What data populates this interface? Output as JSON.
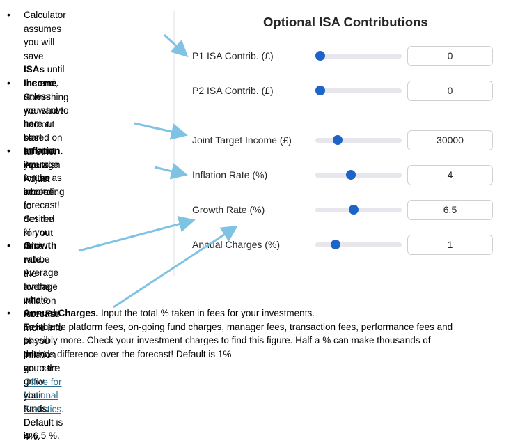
{
  "notes": [
    {
      "lines": [
        "Calculator assumes you will",
        "save ",
        "ISAs",
        " until the end, unless",
        "you show here a start amount",
        "you wish to use as income."
      ]
    },
    {
      "title": "Income.",
      "after_title": " Something we want to",
      "lines": [
        "find out based on all other",
        "inputs. Adjust according to",
        "desired run out date."
      ]
    },
    {
      "title": "Inflation.",
      "after_title": " Average for the whole",
      "lines": [
        "forecast! Set the % you think",
        "will be the average inflation",
        "rate. For more info on inflation",
        "go to the "
      ],
      "link1": "Office for National",
      "link2": "Statistics",
      "after_link": ". Default is 4%."
    },
    {
      "title": "Growth rate.",
      "after_title": " Average for the",
      "lines": [
        "whole forecast! Set the % you",
        "think you can grow your funds.",
        "Default is 6.5 %."
      ]
    },
    {
      "title": "Annual Charges.",
      "after_title": " Input the total % taken in fees for your investments.",
      "lines": [
        "To include platform fees, on-going fund charges, manager fees, transaction fees, performance fees and",
        "possibly more. Check your investment charges to find this figure. Half a % can make thousands of",
        "pounds difference over the forecast! Default is 1%"
      ]
    }
  ],
  "bullet": "•",
  "panel": {
    "title": "Optional ISA Contributions",
    "rows": [
      {
        "label": "P1 ISA Contrib. (£)",
        "value": "0",
        "fill": 0.06
      },
      {
        "label": "P2 ISA Contrib. (£)",
        "value": "0",
        "fill": 0.06
      },
      {
        "label": "Joint Target Income (£)",
        "value": "30000",
        "fill": 0.26
      },
      {
        "label": "Inflation Rate (%)",
        "value": "4",
        "fill": 0.41
      },
      {
        "label": "Growth Rate (%)",
        "value": "6.5",
        "fill": 0.44
      },
      {
        "label": "Annual Charges (%)",
        "value": "1",
        "fill": 0.23
      }
    ]
  },
  "colors": {
    "accent": "#1d64c9",
    "arrow": "#7ec3e3",
    "link": "#2f6d8a"
  }
}
